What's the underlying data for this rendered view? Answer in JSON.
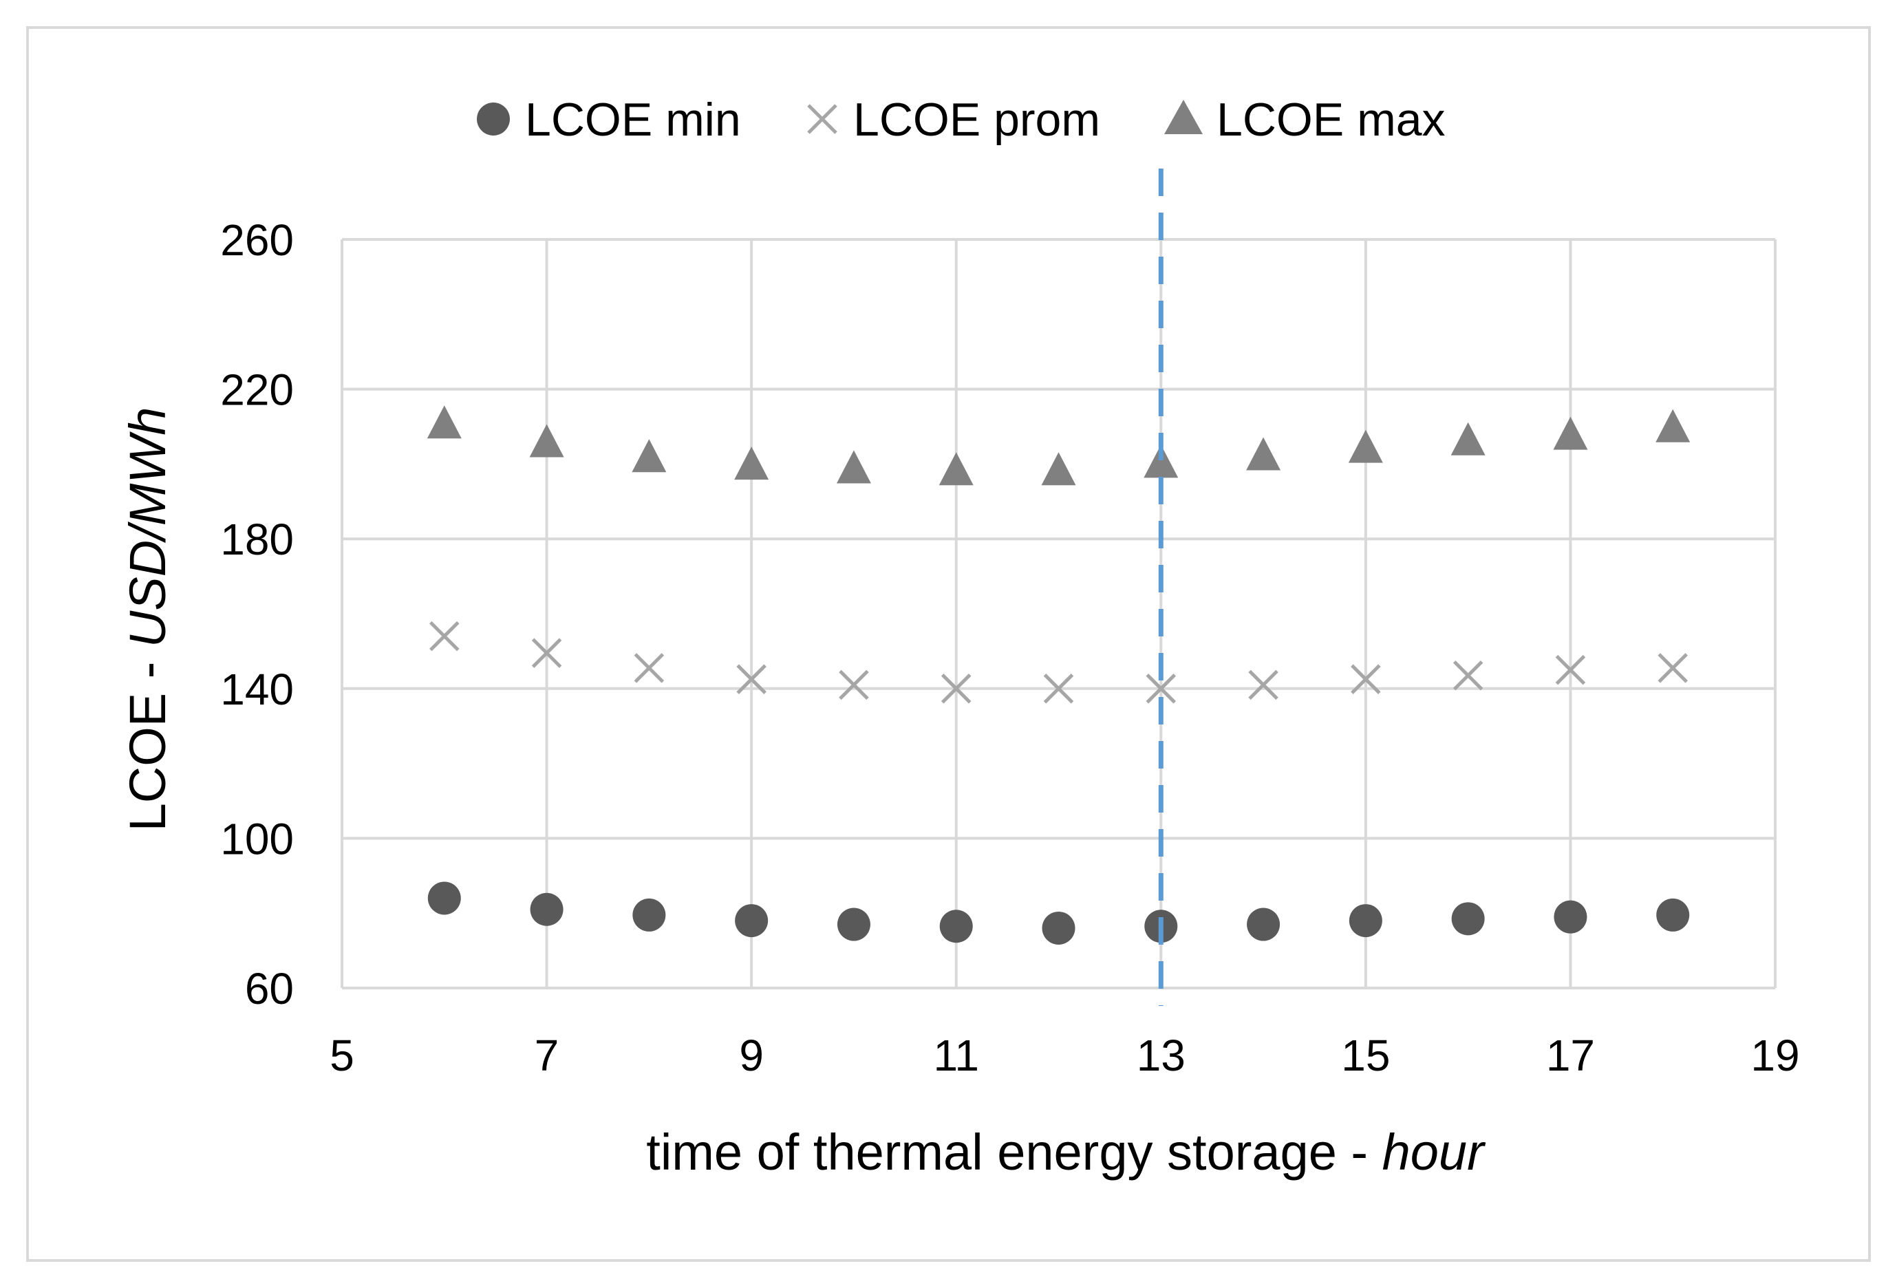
{
  "chart_data": {
    "type": "scatter",
    "title": "",
    "xlabel": "time of thermal energy storage - ",
    "xlabel_italic": "hour",
    "ylabel": "LCOE - ",
    "ylabel_italic": "USD/MWh",
    "xlim": [
      5,
      19
    ],
    "ylim": [
      60,
      260
    ],
    "xticks": [
      5,
      7,
      9,
      11,
      13,
      15,
      17,
      19
    ],
    "yticks": [
      60,
      100,
      140,
      180,
      220,
      260
    ],
    "grid": true,
    "legend_position": "top-center",
    "x": [
      6,
      7,
      8,
      9,
      10,
      11,
      12,
      13,
      14,
      15,
      16,
      17,
      18
    ],
    "series": [
      {
        "name": "LCOE min",
        "marker": "circle",
        "color": "#595959",
        "values": [
          84,
          81,
          79.5,
          78,
          77,
          76.5,
          76,
          76.5,
          77,
          78,
          78.5,
          79,
          79.5
        ]
      },
      {
        "name": "LCOE prom",
        "marker": "x",
        "color": "#a6a6a6",
        "values": [
          154,
          149.5,
          145.5,
          142.5,
          141,
          140,
          140,
          140,
          141,
          142.5,
          143.5,
          145,
          145.5
        ]
      },
      {
        "name": "LCOE max",
        "marker": "triangle",
        "color": "#808080",
        "values": [
          210.5,
          205.5,
          201.5,
          199.5,
          198.5,
          198,
          198,
          200,
          202,
          204,
          206,
          207.5,
          209.5
        ]
      }
    ],
    "reference_line": {
      "x": 13,
      "style": "dashed",
      "color": "#5b9bd5"
    },
    "colors": {
      "grid": "#d9d9d9",
      "frame": "#d9d9d9",
      "text": "#000000"
    }
  }
}
